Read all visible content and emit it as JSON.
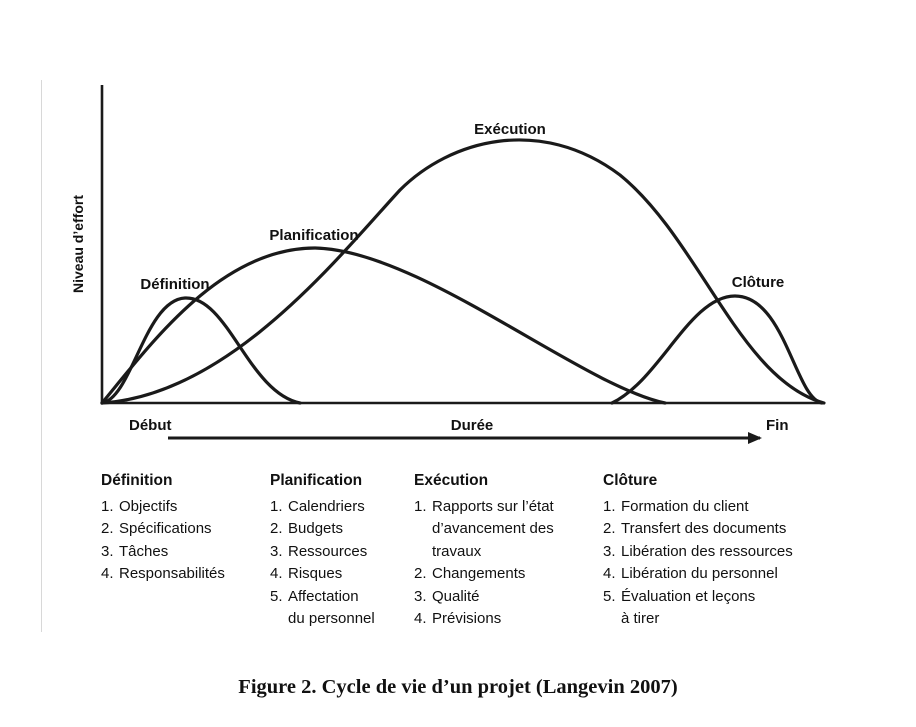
{
  "diagram": {
    "y_axis_label": "Niveau d’effort",
    "x_axis": {
      "start_label": "Début",
      "middle_label": "Durée",
      "end_label": "Fin"
    },
    "curves": [
      {
        "label": "Définition"
      },
      {
        "label": "Planification"
      },
      {
        "label": "Exécution"
      },
      {
        "label": "Clôture"
      }
    ]
  },
  "phases": [
    {
      "title": "Définition",
      "items": [
        {
          "num": "1.",
          "text": "Objectifs"
        },
        {
          "num": "2.",
          "text": "Spécifications"
        },
        {
          "num": "3.",
          "text": "Tâches"
        },
        {
          "num": "4.",
          "text": "Responsabilités"
        }
      ]
    },
    {
      "title": "Planification",
      "items": [
        {
          "num": "1.",
          "text": "Calendriers"
        },
        {
          "num": "2.",
          "text": "Budgets"
        },
        {
          "num": "3.",
          "text": "Ressources"
        },
        {
          "num": "4.",
          "text": "Risques"
        },
        {
          "num": "5.",
          "text": "Affectation\ndu personnel"
        }
      ]
    },
    {
      "title": "Exécution",
      "items": [
        {
          "num": "1.",
          "text": "Rapports sur l’état\nd’avancement des\ntravaux"
        },
        {
          "num": "2.",
          "text": "Changements"
        },
        {
          "num": "3.",
          "text": "Qualité"
        },
        {
          "num": "4.",
          "text": "Prévisions"
        }
      ]
    },
    {
      "title": "Clôture",
      "items": [
        {
          "num": "1.",
          "text": "Formation du client"
        },
        {
          "num": "2.",
          "text": "Transfert des documents"
        },
        {
          "num": "3.",
          "text": "Libération des ressources"
        },
        {
          "num": "4.",
          "text": "Libération du personnel"
        },
        {
          "num": "5.",
          "text": "Évaluation et leçons\nà tirer"
        }
      ]
    }
  ],
  "caption": "Figure 2. Cycle de vie d’un projet (Langevin 2007)"
}
